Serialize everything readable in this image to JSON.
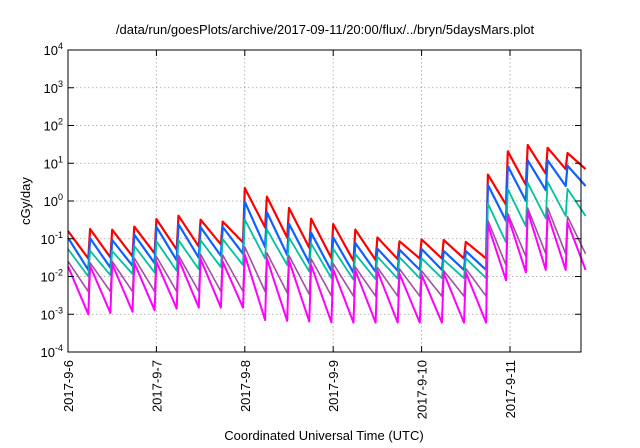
{
  "chart_data": {
    "type": "line",
    "title": "/data/run/goesPlots/archive/2017-09-11/20:00/flux/../bryn/5daysMars.plot",
    "xlabel": "Coordinated Universal Time (UTC)",
    "ylabel": "cGy/day",
    "y_scale": "log",
    "ylim": [
      0.0001,
      10000
    ],
    "y_ticks": [
      {
        "base": "10",
        "exp": "-4"
      },
      {
        "base": "10",
        "exp": "-3"
      },
      {
        "base": "10",
        "exp": "-2"
      },
      {
        "base": "10",
        "exp": "-1"
      },
      {
        "base": "10",
        "exp": "0"
      },
      {
        "base": "10",
        "exp": "1"
      },
      {
        "base": "10",
        "exp": "2"
      },
      {
        "base": "10",
        "exp": "3"
      },
      {
        "base": "10",
        "exp": "4"
      }
    ],
    "x_range_days": [
      "2017-09-06T00:00",
      "2017-09-11T21:00"
    ],
    "x_ticks": [
      "2017-9-6",
      "2017-9-7",
      "2017-9-8",
      "2017-9-9",
      "2017-9-10",
      "2017-9-11"
    ],
    "grid": true,
    "series": [
      {
        "color": "#ff0000",
        "width": 2.2,
        "segments": [
          {
            "start": "2017-09-06T00:00",
            "end": "2017-09-08T00:00",
            "top": [
              0.16,
              0.18,
              0.4,
              0.3
            ],
            "bottom": [
              0.03,
              0.035,
              0.06,
              0.08
            ]
          },
          {
            "start": "2017-09-08T00:00",
            "end": "2017-09-10T18:00",
            "top": [
              2.2,
              0.3,
              0.09,
              0.09
            ],
            "bottom": [
              0.2,
              0.025,
              0.03,
              0.03
            ]
          },
          {
            "start": "2017-09-10T18:00",
            "end": "2017-09-11T21:00",
            "top": [
              5,
              30,
              32,
              18
            ],
            "bottom": [
              0.8,
              4,
              7,
              7
            ]
          }
        ]
      },
      {
        "color": "#1060ff",
        "width": 2.2,
        "segments": [
          {
            "start": "2017-09-06T00:00",
            "end": "2017-09-08T00:00",
            "top": [
              0.1,
              0.1,
              0.25,
              0.2
            ],
            "bottom": [
              0.015,
              0.02,
              0.03,
              0.04
            ]
          },
          {
            "start": "2017-09-08T00:00",
            "end": "2017-09-10T18:00",
            "top": [
              0.9,
              0.12,
              0.05,
              0.05
            ],
            "bottom": [
              0.06,
              0.012,
              0.015,
              0.015
            ]
          },
          {
            "start": "2017-09-10T18:00",
            "end": "2017-09-11T21:00",
            "top": [
              2.5,
              12,
              14,
              8
            ],
            "bottom": [
              0.3,
              1.5,
              2.5,
              2.5
            ]
          }
        ]
      },
      {
        "color": "#00c0a0",
        "width": 1.8,
        "segments": [
          {
            "start": "2017-09-06T00:00",
            "end": "2017-09-08T00:00",
            "top": [
              0.05,
              0.05,
              0.1,
              0.09
            ],
            "bottom": [
              0.01,
              0.012,
              0.015,
              0.02
            ]
          },
          {
            "start": "2017-09-08T00:00",
            "end": "2017-09-10T18:00",
            "top": [
              0.3,
              0.06,
              0.03,
              0.03
            ],
            "bottom": [
              0.03,
              0.008,
              0.009,
              0.009
            ]
          },
          {
            "start": "2017-09-10T18:00",
            "end": "2017-09-11T21:00",
            "top": [
              0.8,
              3,
              3.5,
              2
            ],
            "bottom": [
              0.08,
              0.3,
              0.4,
              0.4
            ]
          }
        ]
      },
      {
        "color": "#a050a0",
        "width": 1.6,
        "segments": [
          {
            "start": "2017-09-06T00:00",
            "end": "2017-09-08T00:00",
            "top": [
              0.025,
              0.025,
              0.04,
              0.035
            ],
            "bottom": [
              0.004,
              0.004,
              0.004,
              0.004
            ]
          },
          {
            "start": "2017-09-08T00:00",
            "end": "2017-09-10T18:00",
            "top": [
              0.06,
              0.025,
              0.015,
              0.015
            ],
            "bottom": [
              0.004,
              0.003,
              0.003,
              0.003
            ]
          },
          {
            "start": "2017-09-10T18:00",
            "end": "2017-09-11T21:00",
            "top": [
              0.3,
              0.6,
              0.7,
              0.4
            ],
            "bottom": [
              0.02,
              0.04,
              0.04,
              0.04
            ]
          }
        ]
      },
      {
        "color": "#ff00ff",
        "width": 2.0,
        "segments": [
          {
            "start": "2017-09-06T00:00",
            "end": "2017-09-08T00:00",
            "top": [
              0.02,
              0.02,
              0.03,
              0.025
            ],
            "bottom": [
              0.001,
              0.0012,
              0.0015,
              0.0015
            ]
          },
          {
            "start": "2017-09-08T00:00",
            "end": "2017-09-10T18:00",
            "top": [
              0.04,
              0.018,
              0.012,
              0.012
            ],
            "bottom": [
              0.0007,
              0.0006,
              0.0006,
              0.0006
            ]
          },
          {
            "start": "2017-09-10T18:00",
            "end": "2017-09-11T21:00",
            "top": [
              0.25,
              0.5,
              0.5,
              0.3
            ],
            "bottom": [
              0.008,
              0.015,
              0.015,
              0.015
            ]
          }
        ]
      }
    ]
  }
}
